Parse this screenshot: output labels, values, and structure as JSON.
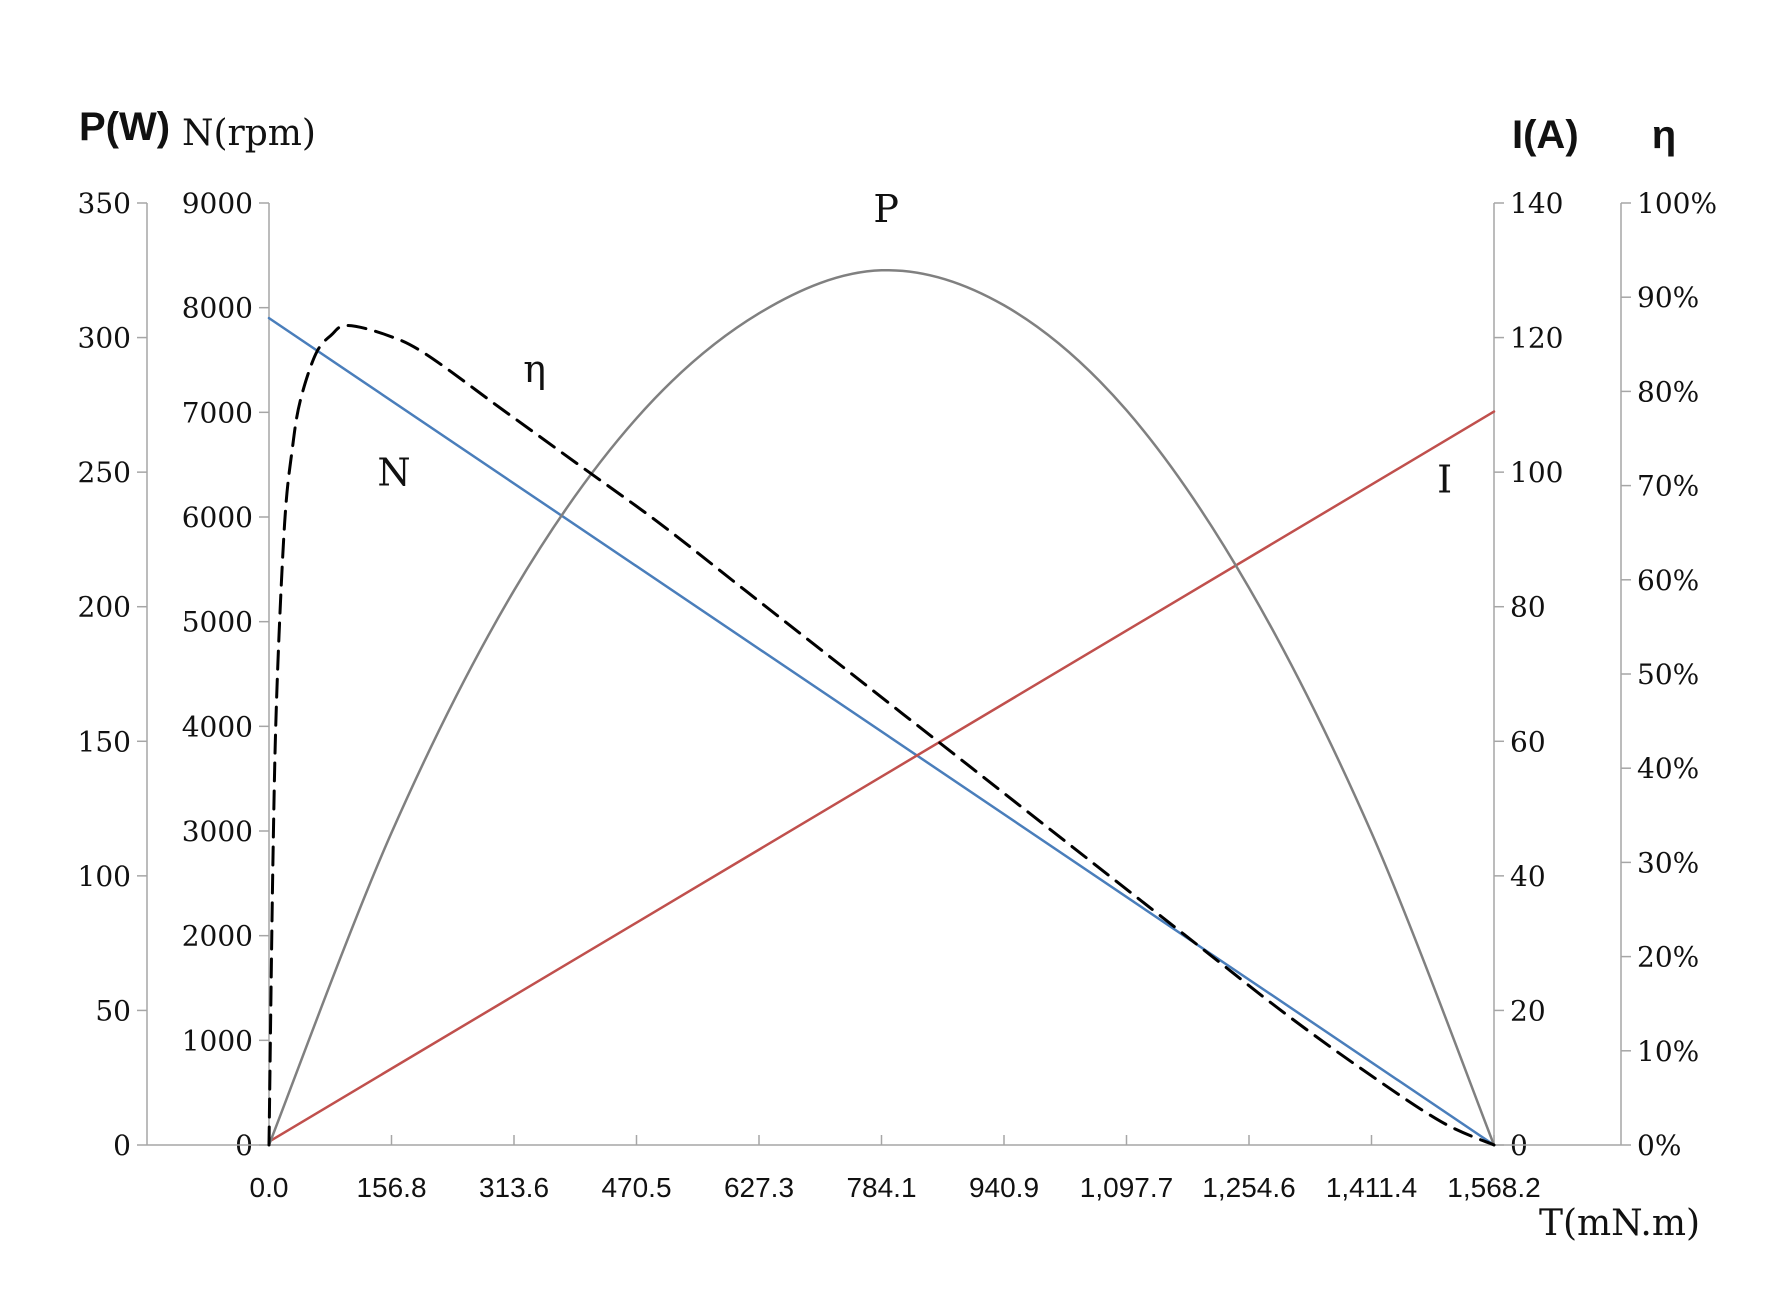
{
  "chart_data": {
    "type": "line",
    "x": {
      "label": "T(mN.m)",
      "range": [
        0,
        1568.2
      ],
      "ticks": [
        "0.0",
        "156.8",
        "313.6",
        "470.5",
        "627.3",
        "784.1",
        "940.9",
        "1,097.7",
        "1,254.6",
        "1,411.4",
        "1,568.2"
      ]
    },
    "axes": {
      "P": {
        "label": "P(W)",
        "range": [
          0,
          350
        ],
        "ticks": [
          "0",
          "50",
          "100",
          "150",
          "200",
          "250",
          "300",
          "350"
        ]
      },
      "N": {
        "label": "N(rpm)",
        "range": [
          0,
          9000
        ],
        "ticks": [
          "0",
          "1000",
          "2000",
          "3000",
          "4000",
          "5000",
          "6000",
          "7000",
          "8000",
          "9000"
        ]
      },
      "I": {
        "label": "I(A)",
        "range": [
          0,
          140
        ],
        "ticks": [
          "0",
          "20",
          "40",
          "60",
          "80",
          "100",
          "120",
          "140"
        ]
      },
      "eta": {
        "label": "η",
        "range": [
          0,
          1
        ],
        "ticks": [
          "0%",
          "10%",
          "20%",
          "30%",
          "40%",
          "50%",
          "60%",
          "70%",
          "80%",
          "90%",
          "100%"
        ]
      }
    },
    "series": [
      {
        "name": "N",
        "axis": "N",
        "color": "#4a7ebb",
        "style": "solid",
        "x": [
          0,
          1568.2
        ],
        "y": [
          7900,
          0
        ]
      },
      {
        "name": "I",
        "axis": "I",
        "color": "#c0504d",
        "style": "solid",
        "x": [
          0,
          1568.2
        ],
        "y": [
          0.5,
          109
        ]
      },
      {
        "name": "P",
        "axis": "P",
        "color": "#808080",
        "style": "solid",
        "x": [
          0,
          156.8,
          313.6,
          470.5,
          627.3,
          784.1,
          940.9,
          1097.7,
          1254.6,
          1411.4,
          1568.2
        ],
        "y": [
          0,
          116,
          206,
          270,
          309,
          325,
          312,
          273,
          207,
          116,
          0
        ]
      },
      {
        "name": "η",
        "axis": "eta",
        "color": "#000000",
        "style": "dashed",
        "x": [
          0,
          5,
          10,
          20,
          30,
          40,
          60,
          80,
          100,
          150,
          200,
          300,
          400,
          500,
          600,
          700,
          800,
          900,
          1000,
          1100,
          1200,
          1300,
          1400,
          1500,
          1568.2
        ],
        "y": [
          0,
          0.3,
          0.48,
          0.66,
          0.74,
          0.79,
          0.84,
          0.86,
          0.87,
          0.86,
          0.84,
          0.78,
          0.72,
          0.66,
          0.595,
          0.53,
          0.465,
          0.4,
          0.335,
          0.27,
          0.205,
          0.14,
          0.08,
          0.025,
          0
        ]
      }
    ],
    "series_labels": [
      {
        "text": "N",
        "x": 160,
        "axis": "N",
        "y": 6300
      },
      {
        "text": "η",
        "x": 340,
        "axis": "eta",
        "y": 0.81
      },
      {
        "text": "P",
        "x": 790,
        "axis": "P",
        "y": 343
      },
      {
        "text": "I",
        "x": 1505,
        "axis": "I",
        "y": 97
      }
    ],
    "grid": false,
    "legend": "none"
  }
}
